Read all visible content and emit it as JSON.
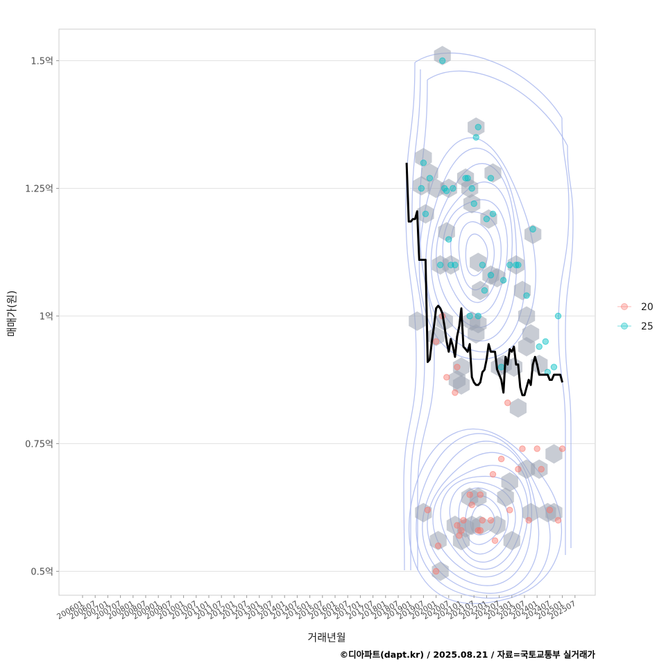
{
  "chart_data": {
    "type": "scatter",
    "xlabel": "거래년월",
    "ylabel": "매매가(원)",
    "caption": "©디아파트(dapt.kr) / 2025.08.21 / 자료=국토교통부 실거래가",
    "x_ticks": [
      "200601",
      "200607",
      "200701",
      "200707",
      "200801",
      "200807",
      "200901",
      "200907",
      "201001",
      "201007",
      "201101",
      "201107",
      "201201",
      "201207",
      "201301",
      "201307",
      "201401",
      "201407",
      "201501",
      "201507",
      "201601",
      "201607",
      "201701",
      "201707",
      "201801",
      "201807",
      "201901",
      "201907",
      "202001",
      "202007",
      "202101",
      "202107",
      "202201",
      "202207",
      "202301",
      "202307",
      "202401",
      "202407",
      "202501",
      "202507"
    ],
    "x_range": [
      "2006-01",
      "2025-07"
    ],
    "y_ticks": [
      {
        "value": 0.5,
        "label": "0.5억"
      },
      {
        "value": 0.75,
        "label": "0.75억"
      },
      {
        "value": 1.0,
        "label": "1억"
      },
      {
        "value": 1.25,
        "label": "1.25억"
      },
      {
        "value": 1.5,
        "label": "1.5억"
      }
    ],
    "ylim": [
      0.46,
      1.56
    ],
    "ylim_unit": "억",
    "grid": true,
    "legend_position": "right",
    "legend": [
      {
        "label": "20",
        "color": "#f8766d"
      },
      {
        "label": "25",
        "color": "#00bfc4"
      }
    ],
    "trend_line": {
      "color": "#000000",
      "points": [
        [
          "2018-11",
          1.3
        ],
        [
          "2018-12",
          1.185
        ],
        [
          "2019-01",
          1.185
        ],
        [
          "2019-02",
          1.19
        ],
        [
          "2019-03",
          1.19
        ],
        [
          "2019-04",
          1.205
        ],
        [
          "2019-05",
          1.11
        ],
        [
          "2019-06",
          1.11
        ],
        [
          "2019-07",
          1.11
        ],
        [
          "2019-08",
          1.11
        ],
        [
          "2019-09",
          0.91
        ],
        [
          "2019-10",
          0.915
        ],
        [
          "2019-11",
          0.95
        ],
        [
          "2019-12",
          0.98
        ],
        [
          "2020-01",
          1.015
        ],
        [
          "2020-02",
          1.02
        ],
        [
          "2020-03",
          1.015
        ],
        [
          "2020-04",
          1.005
        ],
        [
          "2020-05",
          0.98
        ],
        [
          "2020-06",
          0.95
        ],
        [
          "2020-07",
          0.93
        ],
        [
          "2020-08",
          0.955
        ],
        [
          "2020-09",
          0.94
        ],
        [
          "2020-10",
          0.92
        ],
        [
          "2020-11",
          0.96
        ],
        [
          "2020-12",
          0.98
        ],
        [
          "2021-01",
          1.015
        ],
        [
          "2021-02",
          0.94
        ],
        [
          "2021-03",
          0.935
        ],
        [
          "2021-04",
          0.93
        ],
        [
          "2021-05",
          0.945
        ],
        [
          "2021-06",
          0.88
        ],
        [
          "2021-07",
          0.87
        ],
        [
          "2021-08",
          0.865
        ],
        [
          "2021-09",
          0.865
        ],
        [
          "2021-10",
          0.87
        ],
        [
          "2021-11",
          0.89
        ],
        [
          "2021-12",
          0.895
        ],
        [
          "2022-01",
          0.915
        ],
        [
          "2022-02",
          0.945
        ],
        [
          "2022-03",
          0.93
        ],
        [
          "2022-04",
          0.93
        ],
        [
          "2022-05",
          0.93
        ],
        [
          "2022-06",
          0.895
        ],
        [
          "2022-07",
          0.885
        ],
        [
          "2022-08",
          0.875
        ],
        [
          "2022-09",
          0.85
        ],
        [
          "2022-10",
          0.92
        ],
        [
          "2022-11",
          0.905
        ],
        [
          "2022-12",
          0.935
        ],
        [
          "2023-01",
          0.93
        ],
        [
          "2023-02",
          0.94
        ],
        [
          "2023-03",
          0.905
        ],
        [
          "2023-04",
          0.905
        ],
        [
          "2023-05",
          0.86
        ],
        [
          "2023-06",
          0.845
        ],
        [
          "2023-07",
          0.845
        ],
        [
          "2023-08",
          0.86
        ],
        [
          "2023-09",
          0.875
        ],
        [
          "2023-10",
          0.865
        ],
        [
          "2023-11",
          0.905
        ],
        [
          "2023-12",
          0.92
        ],
        [
          "2024-01",
          0.905
        ],
        [
          "2024-02",
          0.885
        ],
        [
          "2024-03",
          0.885
        ],
        [
          "2024-04",
          0.885
        ],
        [
          "2024-05",
          0.885
        ],
        [
          "2024-06",
          0.885
        ],
        [
          "2024-07",
          0.875
        ],
        [
          "2024-08",
          0.875
        ],
        [
          "2024-09",
          0.885
        ],
        [
          "2024-10",
          0.885
        ],
        [
          "2024-11",
          0.885
        ],
        [
          "2024-12",
          0.885
        ],
        [
          "2025-01",
          0.87
        ]
      ]
    },
    "series": [
      {
        "name": "20",
        "color": "#f8766d",
        "points": [
          [
            "2019-09",
            0.62
          ],
          [
            "2020-01",
            0.95
          ],
          [
            "2020-02",
            0.55
          ],
          [
            "2020-01",
            0.5
          ],
          [
            "2020-04",
            1.0
          ],
          [
            "2020-06",
            0.88
          ],
          [
            "2020-10",
            0.85
          ],
          [
            "2020-11",
            0.9
          ],
          [
            "2020-11",
            0.59
          ],
          [
            "2020-12",
            0.57
          ],
          [
            "2021-01",
            0.58
          ],
          [
            "2021-02",
            0.6
          ],
          [
            "2021-05",
            0.65
          ],
          [
            "2021-06",
            0.63
          ],
          [
            "2021-09",
            0.58
          ],
          [
            "2021-10",
            0.65
          ],
          [
            "2021-10",
            0.58
          ],
          [
            "2021-11",
            0.6
          ],
          [
            "2022-03",
            0.6
          ],
          [
            "2022-04",
            0.69
          ],
          [
            "2022-05",
            0.56
          ],
          [
            "2022-08",
            0.72
          ],
          [
            "2022-11",
            0.83
          ],
          [
            "2022-12",
            0.62
          ],
          [
            "2023-04",
            0.7
          ],
          [
            "2023-06",
            0.74
          ],
          [
            "2023-09",
            0.6
          ],
          [
            "2024-01",
            0.74
          ],
          [
            "2024-03",
            0.7
          ],
          [
            "2024-07",
            0.62
          ],
          [
            "2024-11",
            0.6
          ],
          [
            "2025-01",
            0.74
          ]
        ]
      },
      {
        "name": "25",
        "color": "#00bfc4",
        "points": [
          [
            "2019-06",
            1.25
          ],
          [
            "2019-07",
            1.3
          ],
          [
            "2019-08",
            1.2
          ],
          [
            "2019-10",
            1.27
          ],
          [
            "2020-04",
            1.5
          ],
          [
            "2020-05",
            1.25
          ],
          [
            "2020-06",
            1.245
          ],
          [
            "2020-07",
            1.15
          ],
          [
            "2020-08",
            1.1
          ],
          [
            "2020-03",
            1.1
          ],
          [
            "2020-09",
            1.25
          ],
          [
            "2020-10",
            1.1
          ],
          [
            "2021-03",
            1.27
          ],
          [
            "2021-04",
            1.27
          ],
          [
            "2021-06",
            1.25
          ],
          [
            "2021-07",
            1.22
          ],
          [
            "2021-08",
            1.35
          ],
          [
            "2021-09",
            1.37
          ],
          [
            "2021-09",
            1.0
          ],
          [
            "2021-11",
            1.1
          ],
          [
            "2021-12",
            1.05
          ],
          [
            "2022-01",
            1.19
          ],
          [
            "2022-03",
            1.08
          ],
          [
            "2022-03",
            1.27
          ],
          [
            "2022-04",
            1.2
          ],
          [
            "2022-09",
            1.07
          ],
          [
            "2022-12",
            1.1
          ],
          [
            "2023-03",
            1.1
          ],
          [
            "2023-04",
            1.1
          ],
          [
            "2023-08",
            1.04
          ],
          [
            "2023-11",
            1.17
          ],
          [
            "2024-02",
            0.94
          ],
          [
            "2024-05",
            0.95
          ],
          [
            "2024-06",
            0.89
          ],
          [
            "2024-09",
            0.9
          ],
          [
            "2024-11",
            1.0
          ],
          [
            "2021-05",
            1.0
          ],
          [
            "2022-08",
            0.9
          ]
        ]
      }
    ],
    "density_peaks": [
      {
        "x": "2021-11",
        "y": 0.6,
        "levels": 10
      },
      {
        "x": "2021-08",
        "y": 1.12,
        "levels": 8
      }
    ],
    "hexbins": [
      [
        "2020-04",
        1.51
      ],
      [
        "2019-07",
        1.31
      ],
      [
        "2019-10",
        1.28
      ],
      [
        "2019-06",
        1.255
      ],
      [
        "2020-01",
        1.25
      ],
      [
        "2020-07",
        1.25
      ],
      [
        "2019-08",
        1.2
      ],
      [
        "2020-06",
        1.165
      ],
      [
        "2020-08",
        1.1
      ],
      [
        "2020-03",
        1.1
      ],
      [
        "2021-03",
        1.27
      ],
      [
        "2021-05",
        1.25
      ],
      [
        "2021-06",
        1.22
      ],
      [
        "2021-08",
        1.37
      ],
      [
        "2022-04",
        1.28
      ],
      [
        "2022-02",
        1.19
      ],
      [
        "2021-09",
        1.105
      ],
      [
        "2021-10",
        1.05
      ],
      [
        "2022-03",
        1.08
      ],
      [
        "2022-06",
        1.075
      ],
      [
        "2023-03",
        1.1
      ],
      [
        "2023-06",
        1.05
      ],
      [
        "2023-08",
        1.0
      ],
      [
        "2023-10",
        0.965
      ],
      [
        "2023-11",
        1.16
      ],
      [
        "2023-08",
        0.94
      ],
      [
        "2024-02",
        0.905
      ],
      [
        "2019-04",
        0.99
      ],
      [
        "2020-01",
        0.96
      ],
      [
        "2020-05",
        0.99
      ],
      [
        "2020-11",
        0.875
      ],
      [
        "2021-01",
        0.9
      ],
      [
        "2021-01",
        0.865
      ],
      [
        "2021-06",
        0.99
      ],
      [
        "2021-09",
        0.985
      ],
      [
        "2021-08",
        0.965
      ],
      [
        "2022-07",
        0.9
      ],
      [
        "2022-09",
        0.905
      ],
      [
        "2023-02",
        0.9
      ],
      [
        "2023-04",
        0.82
      ],
      [
        "2019-07",
        0.615
      ],
      [
        "2020-02",
        0.56
      ],
      [
        "2020-03",
        0.5
      ],
      [
        "2021-05",
        0.645
      ],
      [
        "2021-09",
        0.645
      ],
      [
        "2020-10",
        0.59
      ],
      [
        "2021-03",
        0.585
      ],
      [
        "2021-06",
        0.59
      ],
      [
        "2021-10",
        0.59
      ],
      [
        "2021-01",
        0.56
      ],
      [
        "2022-06",
        0.59
      ],
      [
        "2022-10",
        0.645
      ],
      [
        "2022-12",
        0.675
      ],
      [
        "2023-01",
        0.56
      ],
      [
        "2023-08",
        0.7
      ],
      [
        "2023-10",
        0.615
      ],
      [
        "2024-02",
        0.7
      ],
      [
        "2024-06",
        0.615
      ],
      [
        "2024-09",
        0.73
      ],
      [
        "2024-09",
        0.615
      ]
    ]
  }
}
